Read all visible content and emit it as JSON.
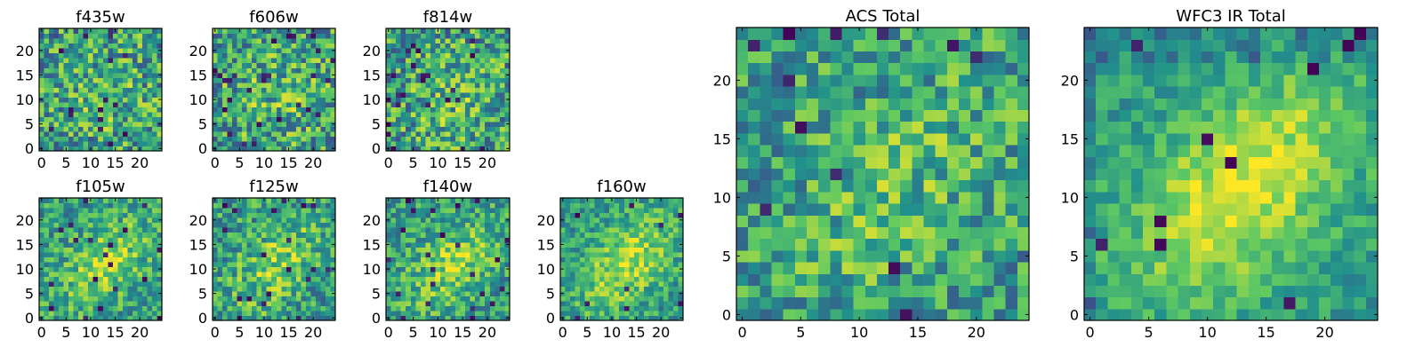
{
  "figure": {
    "colormap": "viridis",
    "colormap_stops": [
      "#440154",
      "#3b528b",
      "#21918c",
      "#5ec962",
      "#fde725"
    ],
    "frame_color": "#000000"
  },
  "chart_data": [
    {
      "type": "heatmap",
      "title": "f435w",
      "grid": [
        25,
        25
      ],
      "xlim": [
        -0.5,
        24.5
      ],
      "ylim": [
        -0.5,
        24.5
      ],
      "xticks": [
        0,
        5,
        10,
        15,
        20
      ],
      "yticks": [
        0,
        5,
        10,
        15,
        20
      ],
      "noise": 0.55,
      "blob_strength": 0.15,
      "dark_fraction": 0.03,
      "seed": 11
    },
    {
      "type": "heatmap",
      "title": "f606w",
      "grid": [
        25,
        25
      ],
      "xlim": [
        -0.5,
        24.5
      ],
      "ylim": [
        -0.5,
        24.5
      ],
      "xticks": [
        0,
        5,
        10,
        15,
        20
      ],
      "yticks": [
        0,
        5,
        10,
        15,
        20
      ],
      "noise": 0.55,
      "blob_strength": 0.2,
      "dark_fraction": 0.04,
      "seed": 23
    },
    {
      "type": "heatmap",
      "title": "f814w",
      "grid": [
        25,
        25
      ],
      "xlim": [
        -0.5,
        24.5
      ],
      "ylim": [
        -0.5,
        24.5
      ],
      "xticks": [
        0,
        5,
        10,
        15,
        20
      ],
      "yticks": [
        0,
        5,
        10,
        15,
        20
      ],
      "noise": 0.55,
      "blob_strength": 0.2,
      "dark_fraction": 0.04,
      "seed": 37
    },
    {
      "type": "heatmap",
      "title": "f105w",
      "grid": [
        25,
        25
      ],
      "xlim": [
        -0.5,
        24.5
      ],
      "ylim": [
        -0.5,
        24.5
      ],
      "xticks": [
        0,
        5,
        10,
        15,
        20
      ],
      "yticks": [
        0,
        5,
        10,
        15,
        20
      ],
      "noise": 0.4,
      "blob_strength": 0.45,
      "dark_fraction": 0.03,
      "seed": 41
    },
    {
      "type": "heatmap",
      "title": "f125w",
      "grid": [
        25,
        25
      ],
      "xlim": [
        -0.5,
        24.5
      ],
      "ylim": [
        -0.5,
        24.5
      ],
      "xticks": [
        0,
        5,
        10,
        15,
        20
      ],
      "yticks": [
        0,
        5,
        10,
        15,
        20
      ],
      "noise": 0.45,
      "blob_strength": 0.4,
      "dark_fraction": 0.04,
      "seed": 53
    },
    {
      "type": "heatmap",
      "title": "f140w",
      "grid": [
        25,
        25
      ],
      "xlim": [
        -0.5,
        24.5
      ],
      "ylim": [
        -0.5,
        24.5
      ],
      "xticks": [
        0,
        5,
        10,
        15,
        20
      ],
      "yticks": [
        0,
        5,
        10,
        15,
        20
      ],
      "noise": 0.4,
      "blob_strength": 0.45,
      "dark_fraction": 0.03,
      "seed": 67
    },
    {
      "type": "heatmap",
      "title": "f160w",
      "grid": [
        25,
        25
      ],
      "xlim": [
        -0.5,
        24.5
      ],
      "ylim": [
        -0.5,
        24.5
      ],
      "xticks": [
        0,
        5,
        10,
        15,
        20
      ],
      "yticks": [
        0,
        5,
        10,
        15,
        20
      ],
      "noise": 0.35,
      "blob_strength": 0.55,
      "dark_fraction": 0.02,
      "seed": 79
    },
    {
      "type": "heatmap",
      "title": "ACS Total",
      "grid": [
        25,
        25
      ],
      "xlim": [
        -0.5,
        24.5
      ],
      "ylim": [
        -0.5,
        24.5
      ],
      "xticks": [
        0,
        5,
        10,
        15,
        20
      ],
      "yticks": [
        0,
        5,
        10,
        15,
        20
      ],
      "noise": 0.45,
      "blob_strength": 0.25,
      "dark_fraction": 0.015,
      "seed": 97
    },
    {
      "type": "heatmap",
      "title": "WFC3 IR Total",
      "grid": [
        25,
        25
      ],
      "xlim": [
        -0.5,
        24.5
      ],
      "ylim": [
        -0.5,
        24.5
      ],
      "xticks": [
        0,
        5,
        10,
        15,
        20
      ],
      "yticks": [
        0,
        5,
        10,
        15,
        20
      ],
      "noise": 0.25,
      "blob_strength": 0.7,
      "dark_fraction": 0.01,
      "seed": 101
    }
  ]
}
